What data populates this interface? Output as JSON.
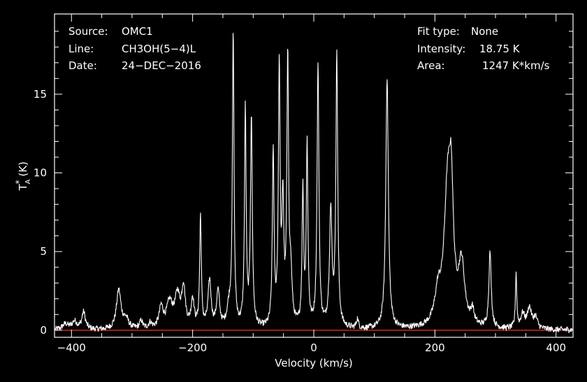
{
  "chart_data": {
    "type": "line",
    "title": "",
    "xlabel": "Velocity (km/s)",
    "ylabel": "T_A^* (K)",
    "ylabel_main": "T",
    "ylabel_sub": "A",
    "ylabel_sup": "*",
    "ylabel_unit": "(K)",
    "xlim": [
      -428,
      428
    ],
    "ylim": [
      -0.45,
      20.1
    ],
    "xticks": [
      -400,
      -200,
      0,
      200,
      400
    ],
    "xtick_labels": [
      "−400",
      "−200",
      "0",
      "200",
      "400"
    ],
    "yticks": [
      0,
      5,
      10,
      15
    ],
    "ytick_labels": [
      "0",
      "5",
      "10",
      "15"
    ],
    "baseline": 0,
    "colors": {
      "background": "#000000",
      "trace": "#ffffff",
      "baseline": "#ff2a2a",
      "frame": "#ffffff"
    },
    "info_left": [
      {
        "key": "Source:",
        "value": "OMC1"
      },
      {
        "key": "Line:",
        "value": "CH3OH(5−4)L"
      },
      {
        "key": "Date:",
        "value": "24−DEC−2016"
      }
    ],
    "info_right": [
      {
        "key": "Fit type:",
        "value": "None"
      },
      {
        "key": "Intensity:",
        "value": "18.75 K"
      },
      {
        "key": "Area:",
        "value": "1247 K*km/s"
      }
    ],
    "series": [
      {
        "peaks": [
          {
            "v": -410,
            "h": 0.35,
            "w": 6
          },
          {
            "v": -395,
            "h": 0.5,
            "w": 5
          },
          {
            "v": -380,
            "h": 1.1,
            "w": 3.5
          },
          {
            "v": -322,
            "h": 2.5,
            "w": 4.5
          },
          {
            "v": -310,
            "h": 0.6,
            "w": 5
          },
          {
            "v": -285,
            "h": 0.5,
            "w": 3
          },
          {
            "v": -270,
            "h": 0.35,
            "w": 3
          },
          {
            "v": -252,
            "h": 1.3,
            "w": 4
          },
          {
            "v": -238,
            "h": 1.6,
            "w": 6
          },
          {
            "v": -225,
            "h": 2.0,
            "w": 5
          },
          {
            "v": -215,
            "h": 2.5,
            "w": 3.5
          },
          {
            "v": -200,
            "h": 1.8,
            "w": 3
          },
          {
            "v": -187,
            "h": 7.1,
            "w": 1.6
          },
          {
            "v": -172,
            "h": 3.0,
            "w": 3
          },
          {
            "v": -158,
            "h": 2.3,
            "w": 3
          },
          {
            "v": -140,
            "h": 1.2,
            "w": 4
          },
          {
            "v": -133,
            "h": 18.6,
            "w": 1.6
          },
          {
            "v": -113,
            "h": 13.8,
            "w": 1.6
          },
          {
            "v": -103,
            "h": 13.3,
            "w": 1.8
          },
          {
            "v": -67,
            "h": 11.2,
            "w": 1.6
          },
          {
            "v": -57,
            "h": 16.3,
            "w": 1.7
          },
          {
            "v": -51,
            "h": 7.5,
            "w": 1.8
          },
          {
            "v": -43,
            "h": 16.7,
            "w": 1.7
          },
          {
            "v": -38,
            "h": 3.0,
            "w": 2.5
          },
          {
            "v": -18,
            "h": 8.6,
            "w": 1.6
          },
          {
            "v": -11,
            "h": 11.5,
            "w": 1.6
          },
          {
            "v": 7,
            "h": 16.8,
            "w": 1.8
          },
          {
            "v": 28,
            "h": 7.3,
            "w": 2.5
          },
          {
            "v": 38,
            "h": 17.3,
            "w": 1.8
          },
          {
            "v": 72,
            "h": 0.6,
            "w": 2
          },
          {
            "v": 121,
            "h": 16.0,
            "w": 2.5
          },
          {
            "v": 205,
            "h": 1.8,
            "w": 6
          },
          {
            "v": 221,
            "h": 8.5,
            "w": 7
          },
          {
            "v": 227,
            "h": 6.3,
            "w": 4
          },
          {
            "v": 244,
            "h": 3.8,
            "w": 6
          },
          {
            "v": 262,
            "h": 0.9,
            "w": 3
          },
          {
            "v": 291,
            "h": 4.8,
            "w": 2.3
          },
          {
            "v": 334,
            "h": 3.5,
            "w": 1.3
          },
          {
            "v": 345,
            "h": 0.9,
            "w": 4
          },
          {
            "v": 356,
            "h": 1.3,
            "w": 4
          },
          {
            "v": 366,
            "h": 0.7,
            "w": 4
          }
        ]
      }
    ]
  }
}
